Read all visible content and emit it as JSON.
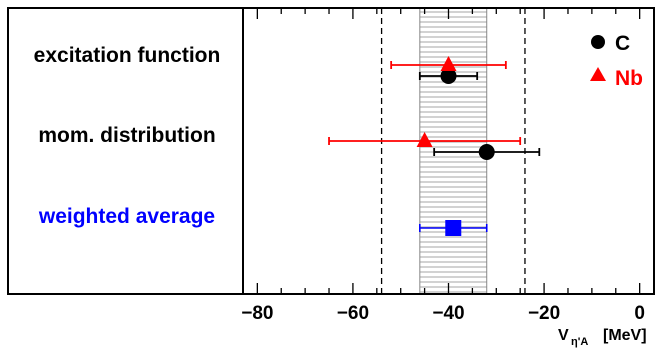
{
  "chart_data": {
    "type": "scatter",
    "xlim": [
      -83,
      3
    ],
    "xticks": [
      -80,
      -60,
      -40,
      -20,
      0
    ],
    "xlabel": "V_{η'A} [MeV]",
    "xlabel_main": "V",
    "xlabel_sub": "η'A",
    "xlabel_unit": "[MeV]",
    "rows": [
      {
        "label": "excitation function",
        "color": "#000000"
      },
      {
        "label": "mom. distribution",
        "color": "#000000"
      },
      {
        "label": "weighted average",
        "color": "#0000ff"
      }
    ],
    "series": [
      {
        "name": "C",
        "marker": "circle",
        "color": "#000000",
        "points": [
          {
            "row": 0,
            "x": -40,
            "xerr_low": -46,
            "xerr_high": -34
          },
          {
            "row": 1,
            "x": -32,
            "xerr_low": -43,
            "xerr_high": -21
          }
        ]
      },
      {
        "name": "Nb",
        "marker": "triangle",
        "color": "#ff0000",
        "points": [
          {
            "row": 0,
            "x": -40,
            "xerr_low": -52,
            "xerr_high": -28
          },
          {
            "row": 1,
            "x": -45,
            "xerr_low": -65,
            "xerr_high": -25
          }
        ]
      },
      {
        "marker": "square",
        "color": "#0000ff",
        "points": [
          {
            "row": 2,
            "x": -39,
            "xerr_low": -46,
            "xerr_high": -32
          }
        ]
      }
    ],
    "band": {
      "xmin": -46,
      "xmax": -32,
      "style": "horizontal-hatch",
      "color": "#888888"
    },
    "dashed_lines": [
      -54,
      -24
    ],
    "legend": {
      "placement": "top-right",
      "entries": [
        "C",
        "Nb"
      ]
    },
    "grid": false
  }
}
